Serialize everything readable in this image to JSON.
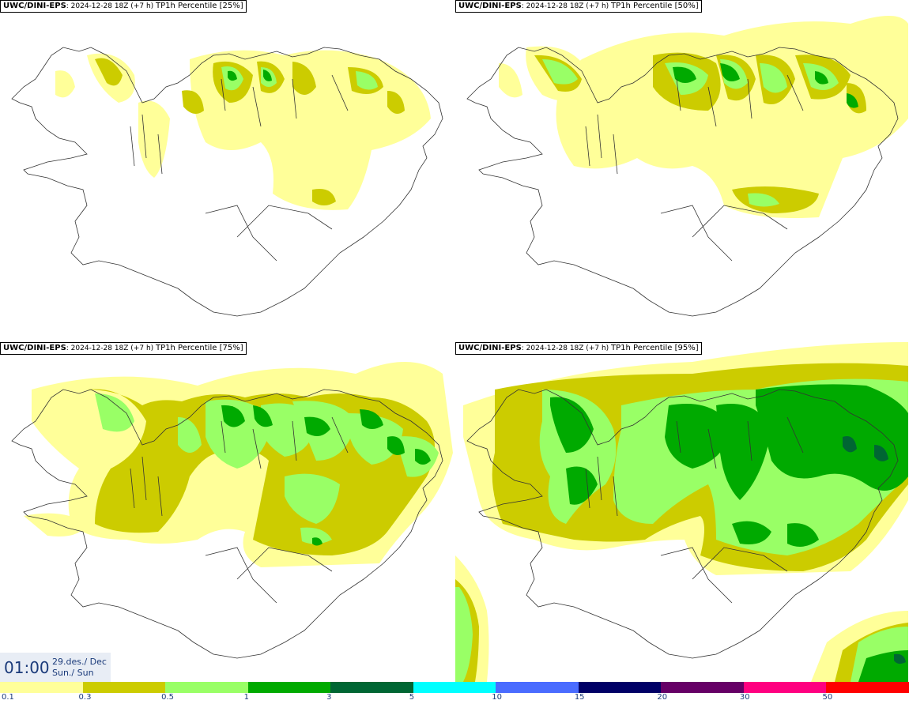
{
  "panels": [
    {
      "source": "UWC/DINI-EPS",
      "run": ": 2024-12-28 18Z (+7 h)",
      "title": "TP1h Percentile [25%]"
    },
    {
      "source": "UWC/DINI-EPS",
      "run": ": 2024-12-28 18Z (+7 h)",
      "title": "TP1h Percentile [50%]"
    },
    {
      "source": "UWC/DINI-EPS",
      "run": ": 2024-12-28 18Z (+7 h)",
      "title": "TP1h Percentile [75%]"
    },
    {
      "source": "UWC/DINI-EPS",
      "run": ": 2024-12-28 18Z (+7 h)",
      "title": "TP1h Percentile [95%]"
    }
  ],
  "valid_time": {
    "time": "01:00",
    "date": "29.des./ Dec",
    "day": "Sun./ Sun"
  },
  "legend": {
    "labels": [
      "0.1",
      "0.3",
      "0.5",
      "1",
      "3",
      "5",
      "10",
      "15",
      "20",
      "30",
      "50"
    ],
    "colors": [
      "#ffff99",
      "#cccc00",
      "#99ff66",
      "#00aa00",
      "#006633",
      "#00ffff",
      "#4a6cff",
      "#000066",
      "#660066",
      "#ff0080",
      "#ff0000"
    ]
  }
}
